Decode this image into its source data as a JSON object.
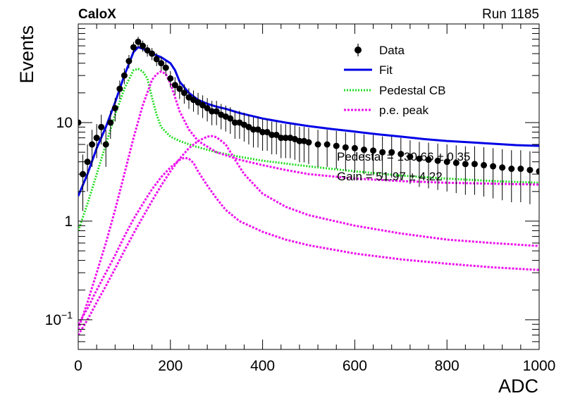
{
  "header": {
    "experiment": "CaloX",
    "run": "Run 1185"
  },
  "chart_data": {
    "type": "scatter",
    "xlabel": "ADC",
    "ylabel": "Events",
    "xlim": [
      0,
      1000
    ],
    "ylim": [
      0.05,
      100
    ],
    "yscale": "log",
    "grid": false,
    "legend_position": "top-right",
    "x_ticks": [
      "0",
      "200",
      "400",
      "600",
      "800",
      "1000"
    ],
    "y_ticks": [
      {
        "value": 10,
        "label": "10"
      },
      {
        "value": 1,
        "label": "1"
      },
      {
        "value": 0.1,
        "label": "10^{-1}",
        "base": "10",
        "exp": "−1"
      }
    ],
    "legend": [
      {
        "label": "Data",
        "style": "marker",
        "color": "#000000"
      },
      {
        "label": "Fit",
        "style": "line",
        "color": "#0000e6"
      },
      {
        "label": "Pedestal CB",
        "style": "dotted",
        "color": "#22dd22"
      },
      {
        "label": "p.e. peak",
        "style": "dotted",
        "color": "#ee11ee"
      }
    ],
    "annotations": [
      "Pedestal = 130.66 ± 0.35",
      "Gain = 51.97 ± 4.22"
    ],
    "series": [
      {
        "name": "Data",
        "kind": "points_with_errors",
        "x": [
          0,
          10,
          20,
          30,
          40,
          50,
          60,
          70,
          80,
          90,
          100,
          110,
          120,
          130,
          140,
          150,
          160,
          170,
          180,
          190,
          200,
          210,
          220,
          230,
          240,
          250,
          260,
          270,
          280,
          290,
          300,
          310,
          320,
          330,
          340,
          350,
          360,
          370,
          380,
          390,
          400,
          410,
          420,
          430,
          440,
          450,
          460,
          470,
          480,
          490,
          500,
          520,
          540,
          560,
          580,
          600,
          620,
          640,
          660,
          680,
          700,
          720,
          740,
          760,
          780,
          800,
          820,
          840,
          860,
          880,
          900,
          920,
          940,
          960,
          980,
          1000
        ],
        "y": [
          10,
          3,
          4,
          6,
          7,
          9,
          6,
          10,
          14,
          22,
          30,
          42,
          58,
          66,
          60,
          54,
          50,
          44,
          40,
          36,
          28,
          24,
          22,
          20,
          18,
          17,
          16,
          15,
          14,
          13,
          13,
          12,
          11.5,
          11,
          10,
          10,
          9.5,
          9,
          8.5,
          8.5,
          8,
          8,
          7.5,
          7.5,
          7,
          7,
          7,
          6.8,
          6.5,
          6.5,
          6.3,
          6,
          6,
          5.8,
          5.6,
          5.5,
          5.3,
          5.2,
          5,
          5,
          4.8,
          4.5,
          4.3,
          4.2,
          4.1,
          4,
          3.9,
          3.8,
          3.8,
          3.7,
          3.6,
          3.5,
          3.4,
          3.4,
          3.3,
          3.2
        ]
      },
      {
        "name": "Fit",
        "kind": "line",
        "color": "#0000e6",
        "x": [
          0,
          20,
          40,
          60,
          80,
          100,
          120,
          130,
          140,
          160,
          180,
          200,
          210,
          220,
          240,
          260,
          280,
          300,
          320,
          350,
          400,
          450,
          500,
          550,
          600,
          650,
          700,
          750,
          800,
          850,
          900,
          950,
          1000
        ],
        "y": [
          1.8,
          3,
          5.5,
          9,
          16,
          30,
          52,
          58,
          56,
          50,
          46,
          40,
          34,
          26,
          20,
          17,
          15.5,
          14.5,
          13.8,
          12.5,
          11,
          10,
          9.2,
          8.6,
          8.1,
          7.6,
          7.2,
          6.8,
          6.5,
          6.3,
          6.1,
          5.9,
          5.8
        ]
      },
      {
        "name": "Pedestal CB",
        "kind": "line",
        "color": "#22dd22",
        "x": [
          0,
          20,
          40,
          60,
          80,
          100,
          120,
          130,
          140,
          150,
          160,
          170,
          180,
          200,
          220,
          250,
          300,
          350,
          400,
          500,
          600,
          700,
          800,
          900,
          1000
        ],
        "y": [
          0.8,
          1.5,
          3,
          6,
          12,
          22,
          34,
          35,
          33,
          28,
          18,
          12,
          9,
          7.2,
          6.5,
          5.8,
          5,
          4.5,
          4.1,
          3.6,
          3.2,
          2.9,
          2.7,
          2.55,
          2.45
        ]
      },
      {
        "name": "p.e. peak",
        "kind": "line",
        "color": "#ee11ee",
        "x": [
          0,
          20,
          40,
          60,
          80,
          100,
          120,
          140,
          160,
          170,
          180,
          190,
          200,
          220,
          240,
          260,
          300,
          350,
          400,
          450,
          500,
          600,
          700,
          800,
          900,
          1000
        ],
        "y": [
          0.08,
          0.15,
          0.3,
          0.6,
          1.3,
          3,
          7,
          15,
          27,
          31,
          33,
          31,
          25,
          13,
          8.5,
          6.5,
          5,
          4.2,
          3.7,
          3.3,
          3,
          2.7,
          2.55,
          2.45,
          2.4,
          2.35
        ]
      },
      {
        "name": "p.e. peak",
        "kind": "line",
        "color": "#ee11ee",
        "x": [
          0,
          20,
          40,
          60,
          80,
          100,
          120,
          140,
          160,
          180,
          200,
          220,
          240,
          260,
          280,
          290,
          300,
          320,
          340,
          360,
          400,
          450,
          500,
          600,
          700,
          800,
          900,
          1000
        ],
        "y": [
          0.07,
          0.1,
          0.15,
          0.22,
          0.33,
          0.5,
          0.75,
          1.1,
          1.6,
          2.3,
          3.2,
          4.3,
          5.5,
          6.5,
          7.2,
          7.3,
          7.1,
          6,
          4.2,
          3,
          1.9,
          1.4,
          1.15,
          0.9,
          0.75,
          0.65,
          0.6,
          0.56
        ]
      },
      {
        "name": "p.e. peak",
        "kind": "line",
        "color": "#ee11ee",
        "x": [
          0,
          20,
          40,
          60,
          80,
          100,
          120,
          140,
          160,
          180,
          200,
          220,
          230,
          240,
          250,
          260,
          280,
          300,
          320,
          350,
          400,
          450,
          500,
          600,
          700,
          800,
          900,
          1000
        ],
        "y": [
          0.09,
          0.13,
          0.2,
          0.3,
          0.45,
          0.7,
          1.05,
          1.5,
          2.1,
          2.8,
          3.5,
          4.2,
          4.4,
          4.3,
          3.9,
          3.2,
          2.3,
          1.7,
          1.3,
          1,
          0.78,
          0.65,
          0.57,
          0.47,
          0.41,
          0.37,
          0.34,
          0.32
        ]
      }
    ]
  }
}
